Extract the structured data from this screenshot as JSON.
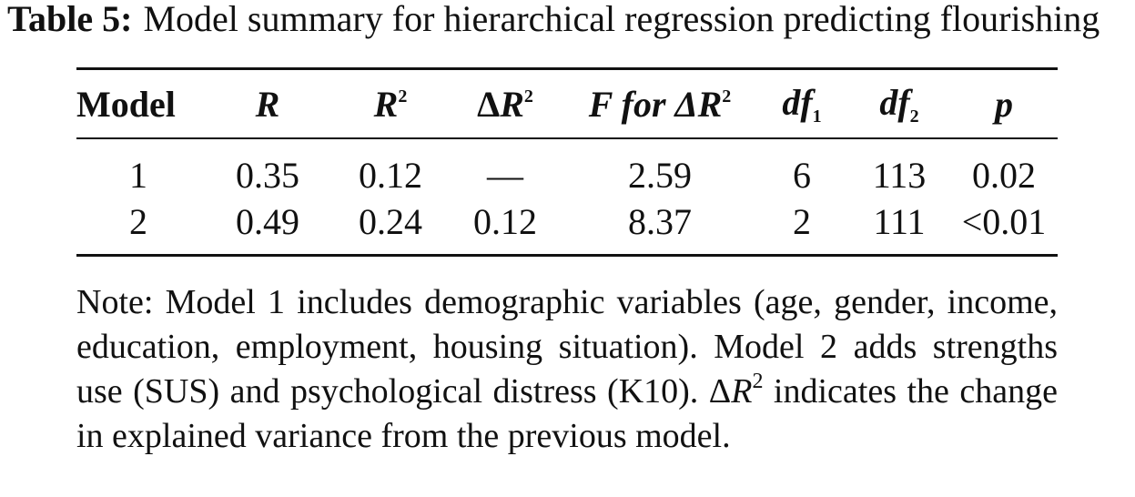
{
  "caption": {
    "label": "Table 5:",
    "text": "Model summary for hierarchical regression predicting flourishing"
  },
  "table": {
    "headers": {
      "model": "Model",
      "r": "R",
      "r2_base": "R",
      "r2_sup": "2",
      "dr2_delta": "Δ",
      "dr2_base": "R",
      "dr2_sup": "2",
      "f_prefix": "F for Δ",
      "f_base": "R",
      "f_sup": "2",
      "df1_base": "df",
      "df1_sub": "1",
      "df2_base": "df",
      "df2_sub": "2",
      "p": "p"
    },
    "rows": [
      [
        "1",
        "0.35",
        "0.12",
        "—",
        "2.59",
        "6",
        "113",
        "0.02"
      ],
      [
        "2",
        "0.49",
        "0.24",
        "0.12",
        "8.37",
        "2",
        "111",
        "<0.01"
      ]
    ]
  },
  "note": {
    "part1": "Note: Model 1 includes demographic variables (age, gender, income, education, employment, housing situation). Model 2 adds strengths use (SUS) and psychological distress (K10). Δ",
    "r_symbol": "R",
    "sup": "2",
    "part2": " indicates the change in explained variance from the previous model."
  }
}
